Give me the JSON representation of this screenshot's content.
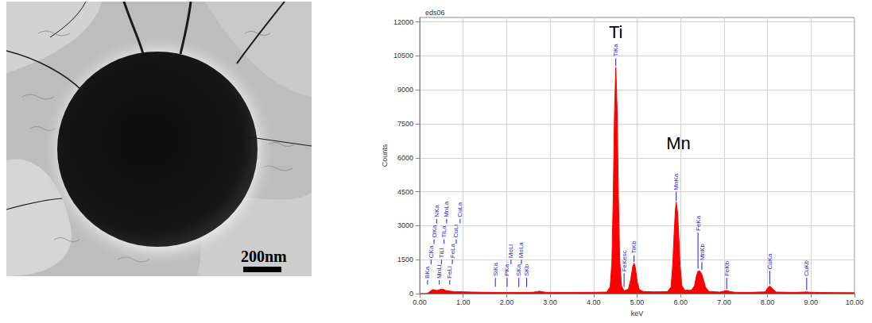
{
  "micrograph": {
    "scale_bar": "200nm"
  },
  "chart_data": {
    "type": "area",
    "title": "eds06",
    "x_label": "keV",
    "y_label": "Counts",
    "color": "#ff0000",
    "grid": true,
    "xlim": [
      0,
      10
    ],
    "xticks": [
      {
        "value": 0,
        "label": "0.00"
      },
      {
        "value": 1,
        "label": "1.00"
      },
      {
        "value": 2,
        "label": "2.00"
      },
      {
        "value": 3,
        "label": "3.00"
      },
      {
        "value": 4,
        "label": "4.00"
      },
      {
        "value": 5,
        "label": "5.00"
      },
      {
        "value": 6,
        "label": "6.00"
      },
      {
        "value": 7,
        "label": "7.00"
      },
      {
        "value": 8,
        "label": "8.00"
      },
      {
        "value": 9,
        "label": "9.00"
      },
      {
        "value": 10,
        "label": "10.00"
      }
    ],
    "ylim": [
      0,
      12200
    ],
    "yticks": [
      0,
      1500,
      3000,
      4500,
      6000,
      7500,
      9000,
      10500,
      12000
    ],
    "x": [
      0,
      0.15,
      0.2,
      0.25,
      0.3,
      0.35,
      0.4,
      0.45,
      0.5,
      0.55,
      0.6,
      0.7,
      0.8,
      0.9,
      1.0,
      1.2,
      1.5,
      1.75,
      2.0,
      2.3,
      2.6,
      2.7,
      2.75,
      2.8,
      2.9,
      3.2,
      3.6,
      4.0,
      4.3,
      4.38,
      4.42,
      4.45,
      4.48,
      4.51,
      4.54,
      4.57,
      4.6,
      4.64,
      4.7,
      4.8,
      4.85,
      4.9,
      4.93,
      4.96,
      5.0,
      5.05,
      5.15,
      5.4,
      5.7,
      5.78,
      5.82,
      5.85,
      5.88,
      5.9,
      5.93,
      5.96,
      5.99,
      6.03,
      6.1,
      6.25,
      6.32,
      6.36,
      6.4,
      6.44,
      6.48,
      6.52,
      6.57,
      6.65,
      6.9,
      7.0,
      7.06,
      7.12,
      7.25,
      7.6,
      7.95,
      8.0,
      8.05,
      8.1,
      8.2,
      8.6,
      8.85,
      8.9,
      8.95,
      9.2,
      9.6,
      10.0
    ],
    "values": [
      0,
      0,
      40,
      120,
      180,
      160,
      140,
      170,
      200,
      180,
      140,
      110,
      90,
      90,
      80,
      70,
      60,
      55,
      55,
      55,
      60,
      90,
      110,
      90,
      60,
      55,
      55,
      60,
      70,
      300,
      1400,
      4200,
      8000,
      10000,
      8200,
      4300,
      1500,
      350,
      120,
      200,
      600,
      1200,
      1350,
      1150,
      550,
      180,
      90,
      80,
      90,
      300,
      1300,
      2600,
      3700,
      4050,
      3600,
      2500,
      1200,
      350,
      150,
      150,
      350,
      750,
      1000,
      1000,
      900,
      650,
      300,
      100,
      70,
      110,
      140,
      100,
      60,
      55,
      80,
      250,
      340,
      240,
      70,
      55,
      70,
      80,
      65,
      50,
      45,
      40
    ],
    "markers": {
      "color": "#1f1fcc",
      "lines": [
        {
          "label": "BKa",
          "x": 0.18,
          "bottom": 400,
          "top": 600
        },
        {
          "label": "CKa",
          "x": 0.26,
          "bottom": 1300,
          "top": 1500
        },
        {
          "label": "OKa",
          "x": 0.33,
          "bottom": 2200,
          "top": 2400
        },
        {
          "label": "NKa",
          "x": 0.39,
          "bottom": 3100,
          "top": 3300
        },
        {
          "label": "MnLl",
          "x": 0.45,
          "bottom": 400,
          "top": 600
        },
        {
          "label": "TiLl",
          "x": 0.5,
          "bottom": 1300,
          "top": 1500
        },
        {
          "label": "TiLa",
          "x": 0.56,
          "bottom": 2200,
          "top": 2400
        },
        {
          "label": "MnLa",
          "x": 0.62,
          "bottom": 3100,
          "top": 3300
        },
        {
          "label": "FeLl",
          "x": 0.69,
          "bottom": 400,
          "top": 600
        },
        {
          "label": "FeLa",
          "x": 0.75,
          "bottom": 1300,
          "top": 1500
        },
        {
          "label": "CuLl",
          "x": 0.84,
          "bottom": 2200,
          "top": 2400
        },
        {
          "label": "CuLa",
          "x": 0.93,
          "bottom": 3100,
          "top": 3300
        },
        {
          "label": "SiKa",
          "x": 1.74,
          "bottom": 300,
          "top": 700
        },
        {
          "label": "PKa",
          "x": 2.01,
          "bottom": 300,
          "top": 700
        },
        {
          "label": "MoLl",
          "x": 2.1,
          "bottom": 1300,
          "top": 1500
        },
        {
          "label": "SKa",
          "x": 2.28,
          "bottom": 300,
          "top": 700
        },
        {
          "label": "MoLa",
          "x": 2.34,
          "bottom": 1300,
          "top": 1500
        },
        {
          "label": "SKb",
          "x": 2.46,
          "bottom": 300,
          "top": 700
        },
        {
          "label": "TiKa",
          "x": 4.51,
          "bottom": 10050,
          "top": 10400
        },
        {
          "label": "FeKesc",
          "x": 4.7,
          "bottom": 300,
          "top": 900
        },
        {
          "label": "TiKb",
          "x": 4.93,
          "bottom": 1400,
          "top": 1700
        },
        {
          "label": "MnKa",
          "x": 5.9,
          "bottom": 4100,
          "top": 4500
        },
        {
          "label": "FeKa",
          "x": 6.4,
          "bottom": 1100,
          "top": 2700
        },
        {
          "label": "MnKb",
          "x": 6.49,
          "bottom": 1050,
          "top": 1400
        },
        {
          "label": "FeKb",
          "x": 7.06,
          "bottom": 200,
          "top": 700
        },
        {
          "label": "CuKa",
          "x": 8.05,
          "bottom": 400,
          "top": 1000
        },
        {
          "label": "CuKb",
          "x": 8.9,
          "bottom": 150,
          "top": 700
        }
      ]
    },
    "annotations": [
      {
        "text": "Ti",
        "x": 4.51,
        "y": 11550
      },
      {
        "text": "Mn",
        "x": 5.95,
        "y": 6650
      }
    ]
  }
}
